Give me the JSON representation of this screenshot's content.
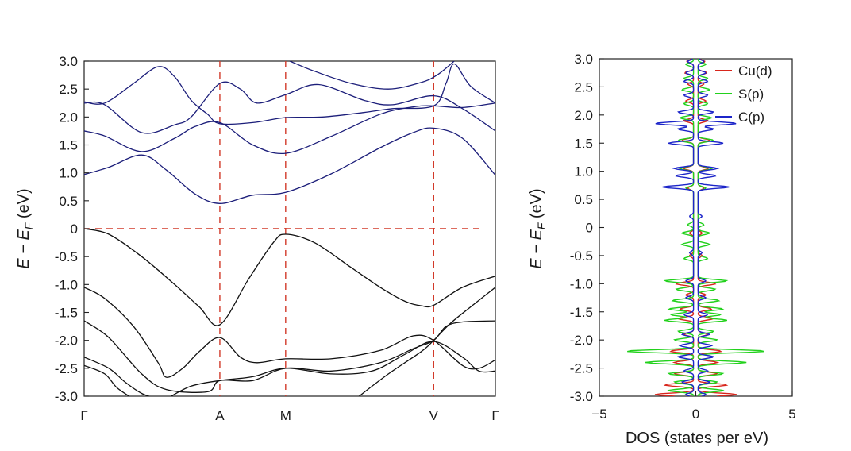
{
  "chart_data": [
    {
      "type": "line",
      "panel": "band-structure",
      "ylabel": {
        "main": "E − E",
        "sub": "F",
        "unit": " (eV)"
      },
      "ylim": [
        -3.0,
        3.0
      ],
      "yticks": [
        "3.0",
        "2.5",
        "2.0",
        "1.5",
        "1.0",
        "0.5",
        "0",
        "-0.5",
        "-1.0",
        "-1.5",
        "-2.0",
        "-2.5",
        "-3.0"
      ],
      "ytick_values": [
        3.0,
        2.5,
        2.0,
        1.5,
        1.0,
        0.5,
        0,
        -0.5,
        -1.0,
        -1.5,
        -2.0,
        -2.5,
        -3.0
      ],
      "kpath": [
        {
          "label": "Γ",
          "k": 0.0
        },
        {
          "label": "A",
          "k": 0.33
        },
        {
          "label": "M",
          "k": 0.49
        },
        {
          "label": "V",
          "k": 0.85
        },
        {
          "label": "Γ",
          "k": 1.0
        }
      ],
      "fermi_level": 0,
      "reference_color": "#d23a2a",
      "conduction_color": "#1c1e7a",
      "valence_color": "#111111",
      "conduction_bands": [
        [
          [
            0,
            0.97
          ],
          [
            0.06,
            1.1
          ],
          [
            0.14,
            1.32
          ],
          [
            0.2,
            1.05
          ],
          [
            0.27,
            0.62
          ],
          [
            0.33,
            0.45
          ],
          [
            0.41,
            0.6
          ],
          [
            0.49,
            0.65
          ],
          [
            0.6,
            0.98
          ],
          [
            0.72,
            1.45
          ],
          [
            0.8,
            1.72
          ],
          [
            0.85,
            1.8
          ],
          [
            0.92,
            1.62
          ],
          [
            1.0,
            0.96
          ]
        ],
        [
          [
            0,
            1.75
          ],
          [
            0.05,
            1.66
          ],
          [
            0.14,
            1.38
          ],
          [
            0.22,
            1.62
          ],
          [
            0.27,
            1.83
          ],
          [
            0.33,
            1.9
          ],
          [
            0.41,
            1.5
          ],
          [
            0.49,
            1.35
          ],
          [
            0.6,
            1.65
          ],
          [
            0.72,
            2.05
          ],
          [
            0.8,
            2.18
          ],
          [
            0.85,
            2.2
          ],
          [
            0.92,
            2.17
          ],
          [
            1.0,
            2.25
          ]
        ],
        [
          [
            0,
            2.25
          ],
          [
            0.05,
            2.22
          ],
          [
            0.14,
            1.72
          ],
          [
            0.22,
            1.86
          ],
          [
            0.26,
            2.0
          ],
          [
            0.33,
            2.6
          ],
          [
            0.38,
            2.5
          ],
          [
            0.42,
            2.25
          ],
          [
            0.49,
            2.4
          ],
          [
            0.57,
            2.58
          ],
          [
            0.68,
            2.3
          ],
          [
            0.75,
            2.22
          ],
          [
            0.85,
            2.38
          ],
          [
            0.92,
            2.15
          ],
          [
            1.0,
            1.75
          ]
        ],
        [
          [
            0,
            2.27
          ],
          [
            0.05,
            2.25
          ],
          [
            0.12,
            2.6
          ],
          [
            0.18,
            2.9
          ],
          [
            0.22,
            2.72
          ],
          [
            0.26,
            2.3
          ],
          [
            0.3,
            2.05
          ],
          [
            0.33,
            1.88
          ],
          [
            0.41,
            1.9
          ],
          [
            0.49,
            1.99
          ],
          [
            0.58,
            2.0
          ],
          [
            0.68,
            2.08
          ],
          [
            0.75,
            2.15
          ],
          [
            0.85,
            2.2
          ],
          [
            0.88,
            2.6
          ],
          [
            0.9,
            2.95
          ],
          [
            0.94,
            2.55
          ],
          [
            1.0,
            2.25
          ]
        ],
        [
          [
            0.5,
            3.0
          ],
          [
            0.56,
            2.82
          ],
          [
            0.65,
            2.6
          ],
          [
            0.74,
            2.5
          ],
          [
            0.82,
            2.62
          ],
          [
            0.86,
            2.76
          ],
          [
            0.9,
            3.0
          ]
        ]
      ],
      "valence_bands": [
        [
          [
            0,
            0
          ],
          [
            0.06,
            -0.1
          ],
          [
            0.14,
            -0.5
          ],
          [
            0.22,
            -1.0
          ],
          [
            0.28,
            -1.4
          ],
          [
            0.33,
            -1.72
          ],
          [
            0.4,
            -0.9
          ],
          [
            0.46,
            -0.25
          ],
          [
            0.49,
            -0.1
          ],
          [
            0.56,
            -0.25
          ],
          [
            0.65,
            -0.7
          ],
          [
            0.72,
            -1.05
          ],
          [
            0.78,
            -1.3
          ],
          [
            0.82,
            -1.38
          ],
          [
            0.85,
            -1.37
          ],
          [
            0.92,
            -1.05
          ],
          [
            1.0,
            -0.85
          ]
        ],
        [
          [
            0,
            -1.05
          ],
          [
            0.05,
            -1.25
          ],
          [
            0.12,
            -1.75
          ],
          [
            0.18,
            -2.4
          ],
          [
            0.2,
            -2.66
          ],
          [
            0.24,
            -2.5
          ],
          [
            0.28,
            -2.2
          ],
          [
            0.33,
            -1.95
          ],
          [
            0.38,
            -2.3
          ],
          [
            0.42,
            -2.4
          ],
          [
            0.49,
            -2.33
          ],
          [
            0.6,
            -2.33
          ],
          [
            0.72,
            -2.18
          ],
          [
            0.8,
            -1.92
          ],
          [
            0.85,
            -2.0
          ],
          [
            0.92,
            -2.45
          ],
          [
            0.96,
            -2.5
          ],
          [
            1.0,
            -2.35
          ]
        ],
        [
          [
            0,
            -1.65
          ],
          [
            0.06,
            -1.95
          ],
          [
            0.14,
            -2.6
          ],
          [
            0.2,
            -2.88
          ],
          [
            0.3,
            -2.92
          ],
          [
            0.33,
            -2.72
          ],
          [
            0.41,
            -2.72
          ],
          [
            0.49,
            -2.5
          ],
          [
            0.6,
            -2.55
          ],
          [
            0.72,
            -2.4
          ],
          [
            0.8,
            -2.15
          ],
          [
            0.85,
            -2.0
          ],
          [
            0.88,
            -1.75
          ],
          [
            0.92,
            -1.67
          ],
          [
            1.0,
            -1.65
          ]
        ],
        [
          [
            0,
            -2.3
          ],
          [
            0.06,
            -2.5
          ],
          [
            0.1,
            -2.75
          ],
          [
            0.14,
            -2.95
          ],
          [
            0.18,
            -3.05
          ]
        ],
        [
          [
            0,
            -2.45
          ],
          [
            0.05,
            -2.6
          ],
          [
            0.08,
            -2.85
          ],
          [
            0.12,
            -3.05
          ]
        ],
        [
          [
            0.2,
            -3.05
          ],
          [
            0.26,
            -2.82
          ],
          [
            0.33,
            -2.72
          ],
          [
            0.41,
            -2.65
          ],
          [
            0.49,
            -2.5
          ],
          [
            0.6,
            -2.6
          ],
          [
            0.7,
            -2.55
          ],
          [
            0.78,
            -2.25
          ],
          [
            0.85,
            -2.02
          ],
          [
            0.92,
            -2.3
          ],
          [
            0.96,
            -2.55
          ],
          [
            1.0,
            -2.55
          ]
        ],
        [
          [
            0.66,
            -3.05
          ],
          [
            0.74,
            -2.6
          ],
          [
            0.82,
            -2.2
          ],
          [
            0.85,
            -2.0
          ],
          [
            0.89,
            -1.7
          ],
          [
            0.94,
            -1.4
          ],
          [
            1.0,
            -1.05
          ]
        ]
      ]
    },
    {
      "type": "line",
      "panel": "density-of-states",
      "xlabel": "DOS (states per eV)",
      "ylabel": {
        "main": "E − E",
        "sub": "F",
        "unit": " (eV)"
      },
      "xlim": [
        -5,
        5
      ],
      "ylim": [
        -3.0,
        3.0
      ],
      "xticks": [
        "−5",
        "0",
        "5"
      ],
      "xtick_values": [
        -5,
        0,
        5
      ],
      "yticks": [
        "3.0",
        "2.5",
        "2.0",
        "1.5",
        "1.0",
        "0.5",
        "0",
        "-0.5",
        "-1.0",
        "-1.5",
        "-2.0",
        "-2.5",
        "-3.0"
      ],
      "ytick_values": [
        3.0,
        2.5,
        2.0,
        1.5,
        1.0,
        0.5,
        0,
        -0.5,
        -1.0,
        -1.5,
        -2.0,
        -2.5,
        -3.0
      ],
      "legend_position": "top-right",
      "series": [
        {
          "name": "Cu(d)",
          "color": "#d8261c",
          "peaks": [
            [
              2.95,
              0.35
            ],
            [
              2.75,
              0.45
            ],
            [
              2.55,
              0.3
            ],
            [
              2.25,
              0.4
            ],
            [
              1.9,
              0.5
            ],
            [
              1.55,
              0.6
            ],
            [
              1.05,
              0.5
            ],
            [
              0.7,
              0.3
            ],
            [
              -0.1,
              0.2
            ],
            [
              -0.5,
              0.2
            ],
            [
              -1.0,
              0.9
            ],
            [
              -1.2,
              0.4
            ],
            [
              -1.45,
              0.7
            ],
            [
              -1.62,
              0.8
            ],
            [
              -1.9,
              0.5
            ],
            [
              -2.2,
              1.2
            ],
            [
              -2.4,
              1.0
            ],
            [
              -2.6,
              1.0
            ],
            [
              -2.8,
              1.5
            ],
            [
              -2.97,
              2.0
            ]
          ]
        },
        {
          "name": "S(p)",
          "color": "#22d11c",
          "peaks": [
            [
              2.9,
              0.4
            ],
            [
              2.65,
              0.5
            ],
            [
              2.45,
              0.6
            ],
            [
              2.2,
              0.5
            ],
            [
              1.95,
              0.7
            ],
            [
              1.55,
              0.8
            ],
            [
              1.05,
              0.7
            ],
            [
              0.7,
              0.4
            ],
            [
              0.05,
              0.3
            ],
            [
              -0.1,
              0.6
            ],
            [
              -0.3,
              0.6
            ],
            [
              -0.55,
              0.5
            ],
            [
              -0.95,
              1.5
            ],
            [
              -1.1,
              0.9
            ],
            [
              -1.3,
              1.1
            ],
            [
              -1.45,
              1.3
            ],
            [
              -1.55,
              1.2
            ],
            [
              -1.65,
              1.5
            ],
            [
              -1.85,
              0.8
            ],
            [
              -2.0,
              1.0
            ],
            [
              -2.2,
              3.5
            ],
            [
              -2.4,
              2.5
            ],
            [
              -2.6,
              1.3
            ],
            [
              -2.75,
              1.0
            ],
            [
              -2.9,
              1.3
            ]
          ]
        },
        {
          "name": "C(p)",
          "color": "#1c25c9",
          "peaks": [
            [
              2.95,
              0.3
            ],
            [
              2.75,
              0.4
            ],
            [
              2.6,
              0.5
            ],
            [
              2.35,
              0.5
            ],
            [
              2.05,
              0.8
            ],
            [
              1.85,
              2.0
            ],
            [
              1.75,
              0.8
            ],
            [
              1.5,
              1.3
            ],
            [
              1.05,
              1.0
            ],
            [
              0.92,
              0.9
            ],
            [
              0.72,
              1.6
            ],
            [
              0.2,
              0.2
            ],
            [
              -0.45,
              0.2
            ],
            [
              -0.95,
              0.4
            ],
            [
              -1.25,
              0.4
            ],
            [
              -1.55,
              0.5
            ],
            [
              -1.9,
              0.6
            ],
            [
              -2.1,
              0.7
            ],
            [
              -2.3,
              0.8
            ],
            [
              -2.55,
              0.5
            ],
            [
              -2.75,
              0.6
            ],
            [
              -2.97,
              0.4
            ]
          ]
        }
      ]
    }
  ]
}
